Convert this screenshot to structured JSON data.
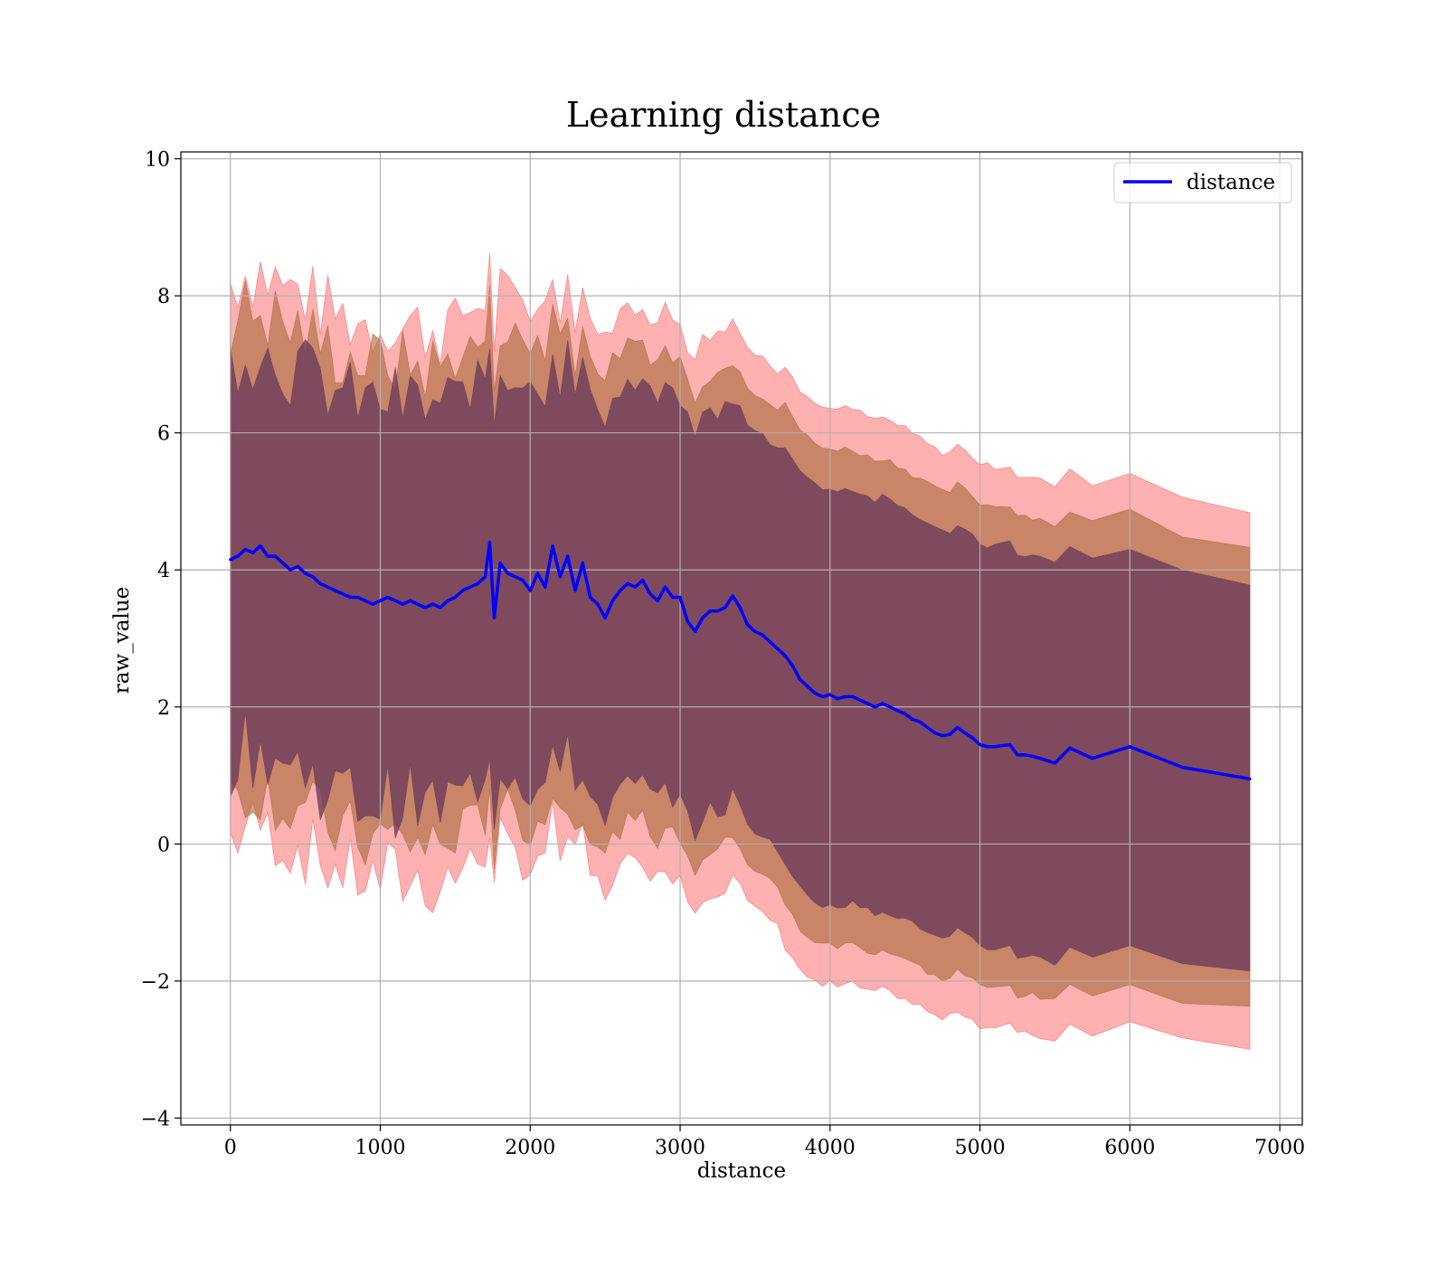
{
  "chart_data": {
    "type": "line",
    "title": "Learning distance",
    "xlabel": "distance",
    "ylabel": "raw_value",
    "xlim": [
      -330,
      7150
    ],
    "ylim": [
      -4.1,
      10.1
    ],
    "xticks": [
      0,
      1000,
      2000,
      3000,
      4000,
      5000,
      6000,
      7000
    ],
    "yticks": [
      -4,
      -2,
      0,
      2,
      4,
      6,
      8,
      10
    ],
    "xtick_labels": [
      "0",
      "1000",
      "2000",
      "3000",
      "4000",
      "5000",
      "6000",
      "7000"
    ],
    "ytick_labels": [
      "−4",
      "−2",
      "0",
      "2",
      "4",
      "6",
      "8",
      "10"
    ],
    "grid": true,
    "legend": {
      "placement": "top-right",
      "entries": [
        "distance"
      ]
    },
    "colors": {
      "line": "#0000ff",
      "outer_band": "#ff5a5a",
      "middle_band": "#a86a3c",
      "inner_band": "#6a3a5a",
      "grid": "#b0b0b0"
    },
    "series": [
      {
        "name": "distance",
        "x": [
          0,
          50,
          100,
          150,
          200,
          250,
          300,
          350,
          400,
          450,
          500,
          550,
          600,
          650,
          700,
          750,
          800,
          850,
          900,
          950,
          1000,
          1050,
          1100,
          1150,
          1200,
          1250,
          1300,
          1350,
          1400,
          1450,
          1500,
          1550,
          1600,
          1650,
          1700,
          1730,
          1760,
          1800,
          1850,
          1900,
          1950,
          2000,
          2050,
          2100,
          2150,
          2200,
          2250,
          2300,
          2350,
          2400,
          2450,
          2500,
          2550,
          2600,
          2650,
          2700,
          2750,
          2800,
          2850,
          2900,
          2950,
          3000,
          3050,
          3100,
          3150,
          3200,
          3250,
          3300,
          3350,
          3400,
          3450,
          3500,
          3550,
          3600,
          3650,
          3700,
          3750,
          3800,
          3850,
          3900,
          3950,
          4000,
          4050,
          4100,
          4150,
          4200,
          4250,
          4300,
          4350,
          4400,
          4450,
          4500,
          4550,
          4600,
          4650,
          4700,
          4750,
          4800,
          4850,
          4900,
          4950,
          5000,
          5050,
          5100,
          5200,
          5250,
          5300,
          5350,
          5400,
          5500,
          5600,
          5750,
          6000,
          6350,
          6800
        ],
        "values": [
          4.15,
          4.2,
          4.3,
          4.25,
          4.35,
          4.2,
          4.2,
          4.1,
          4.0,
          4.05,
          3.95,
          3.9,
          3.8,
          3.75,
          3.7,
          3.65,
          3.6,
          3.6,
          3.55,
          3.5,
          3.55,
          3.6,
          3.55,
          3.5,
          3.55,
          3.5,
          3.45,
          3.5,
          3.45,
          3.55,
          3.6,
          3.7,
          3.75,
          3.8,
          3.9,
          4.4,
          3.3,
          4.1,
          3.95,
          3.9,
          3.85,
          3.7,
          3.95,
          3.75,
          4.35,
          3.9,
          4.2,
          3.7,
          4.1,
          3.6,
          3.5,
          3.3,
          3.55,
          3.7,
          3.8,
          3.75,
          3.85,
          3.65,
          3.55,
          3.75,
          3.6,
          3.6,
          3.25,
          3.1,
          3.3,
          3.4,
          3.4,
          3.45,
          3.62,
          3.45,
          3.2,
          3.1,
          3.05,
          2.95,
          2.85,
          2.75,
          2.6,
          2.4,
          2.3,
          2.2,
          2.15,
          2.18,
          2.12,
          2.15,
          2.15,
          2.1,
          2.05,
          2.0,
          2.05,
          2.0,
          1.95,
          1.9,
          1.82,
          1.78,
          1.7,
          1.62,
          1.58,
          1.6,
          1.7,
          1.62,
          1.55,
          1.45,
          1.42,
          1.42,
          1.45,
          1.3,
          1.3,
          1.28,
          1.25,
          1.18,
          1.4,
          1.25,
          1.42,
          1.12,
          0.95
        ]
      }
    ]
  }
}
